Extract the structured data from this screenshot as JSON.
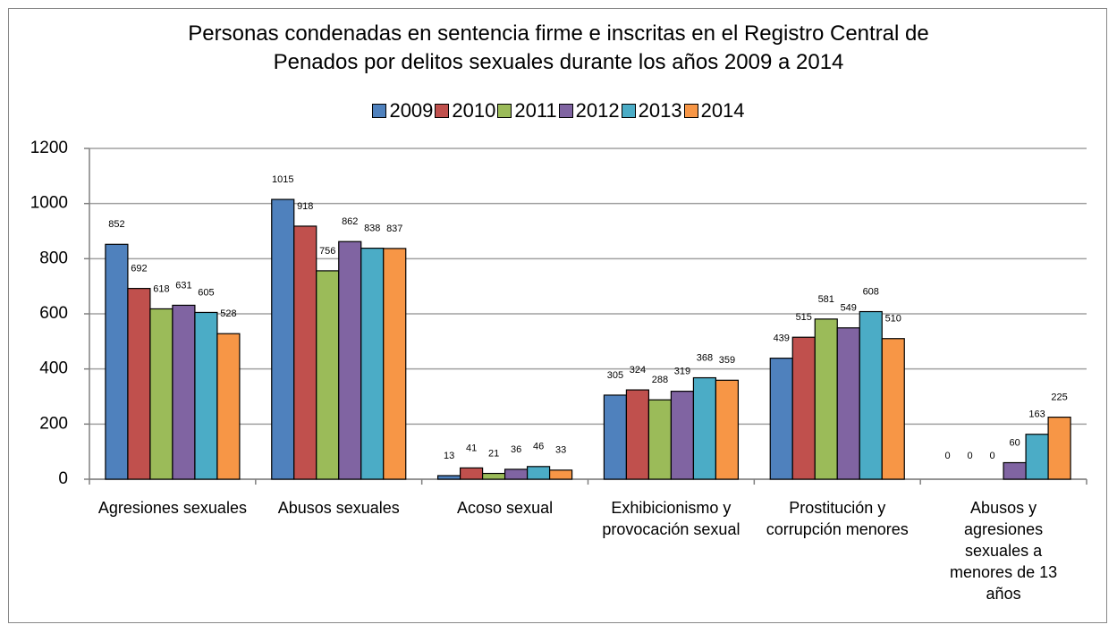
{
  "chart_data": {
    "type": "bar",
    "title": "Personas condenadas en sentencia firme e inscritas en el Registro Central de\nPenados por delitos sexuales durante los años 2009 a 2014",
    "categories": [
      "Agresiones sexuales",
      "Abusos sexuales",
      "Acoso sexual",
      "Exhibicionismo y provocación sexual",
      "Prostitución y corrupción menores",
      "Abusos y agresiones sexuales a menores de 13 años"
    ],
    "series": [
      {
        "name": "2009",
        "color": "#4f81bd",
        "values": [
          852,
          1015,
          13,
          305,
          439,
          0
        ]
      },
      {
        "name": "2010",
        "color": "#c0504d",
        "values": [
          692,
          918,
          41,
          324,
          515,
          0
        ]
      },
      {
        "name": "2011",
        "color": "#9bbb59",
        "values": [
          618,
          756,
          21,
          288,
          581,
          0
        ]
      },
      {
        "name": "2012",
        "color": "#8064a2",
        "values": [
          631,
          862,
          36,
          319,
          549,
          60
        ]
      },
      {
        "name": "2013",
        "color": "#4bacc6",
        "values": [
          605,
          838,
          46,
          368,
          608,
          163
        ]
      },
      {
        "name": "2014",
        "color": "#f79646",
        "values": [
          528,
          837,
          33,
          359,
          510,
          225
        ]
      }
    ],
    "ylim": [
      0,
      1200
    ],
    "yticks": [
      0,
      200,
      400,
      600,
      800,
      1000,
      1200
    ],
    "grid": true,
    "legend": "top"
  }
}
